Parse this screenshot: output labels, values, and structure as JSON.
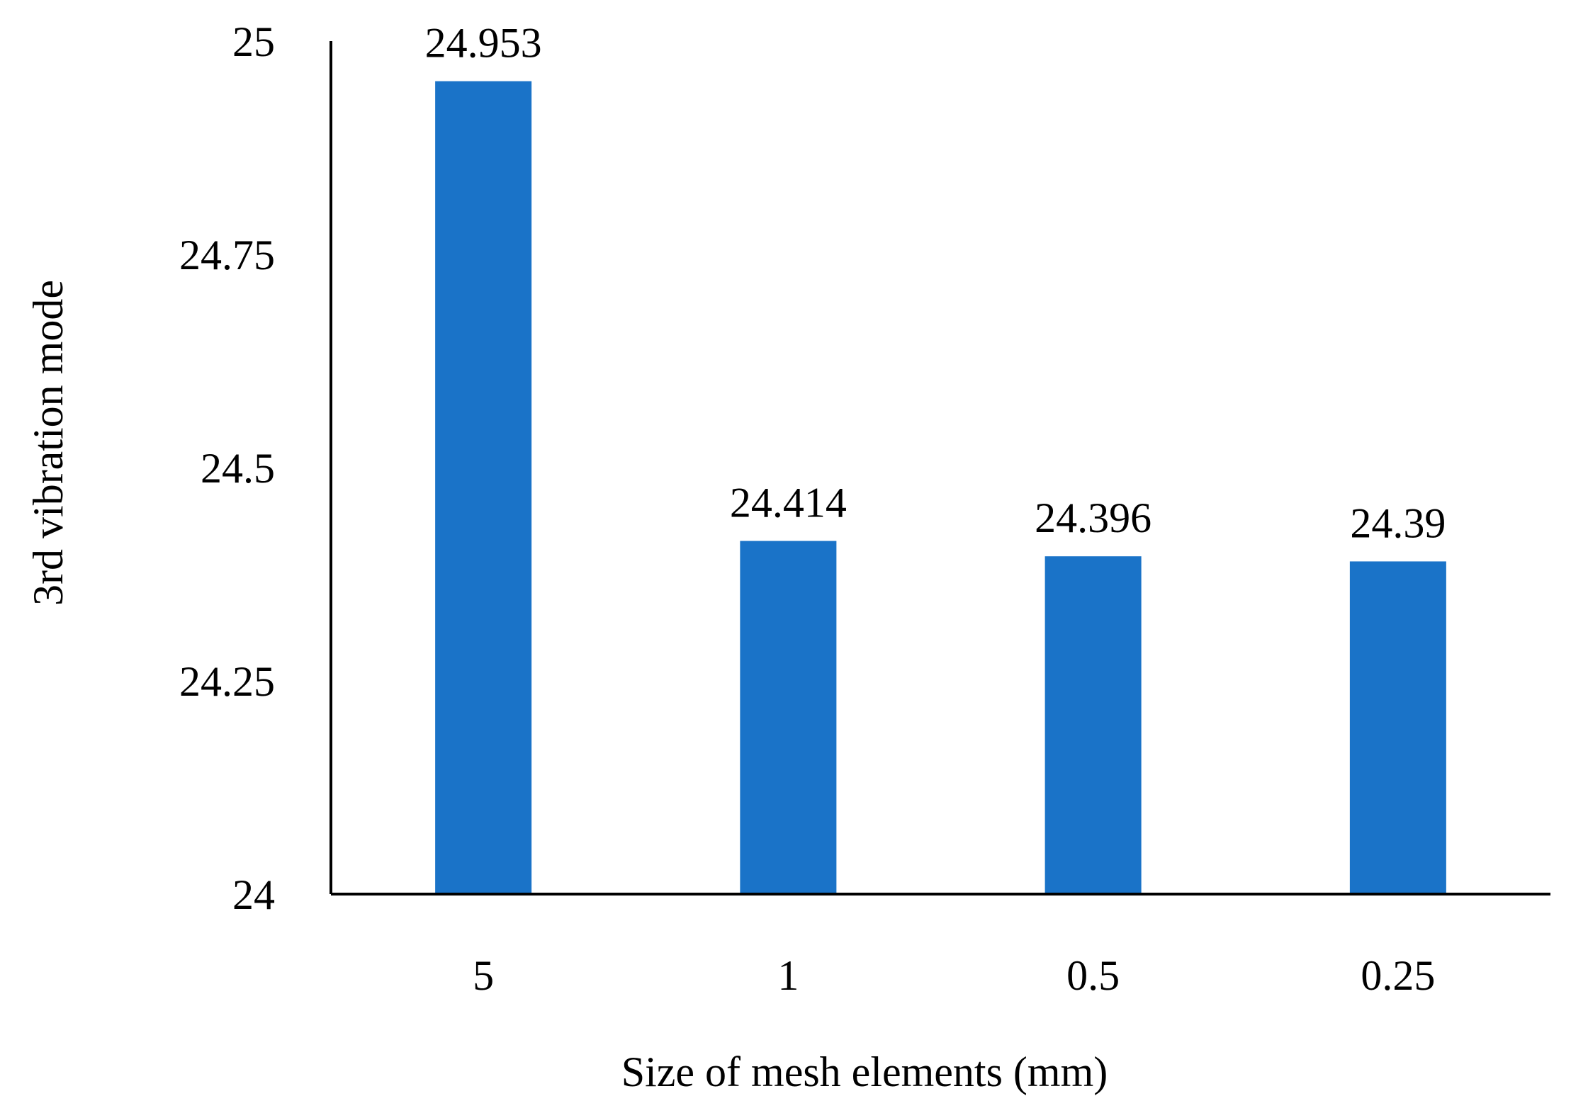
{
  "chart_data": {
    "type": "bar",
    "categories": [
      "5",
      "1",
      "0.5",
      "0.25"
    ],
    "values": [
      24.953,
      24.414,
      24.396,
      24.39
    ],
    "data_labels": [
      "24.953",
      "24.414",
      "24.396",
      "24.39"
    ],
    "xlabel": "Size of mesh elements (mm)",
    "ylabel": "3rd vibration mode",
    "ylim": [
      24,
      25
    ],
    "y_ticks": [
      24,
      24.25,
      24.5,
      24.75,
      25
    ],
    "y_tick_labels": [
      "24",
      "24.25",
      "24.5",
      "24.75",
      "25"
    ],
    "grid": false,
    "legend": "none",
    "bar_color": "#1a73c8"
  }
}
